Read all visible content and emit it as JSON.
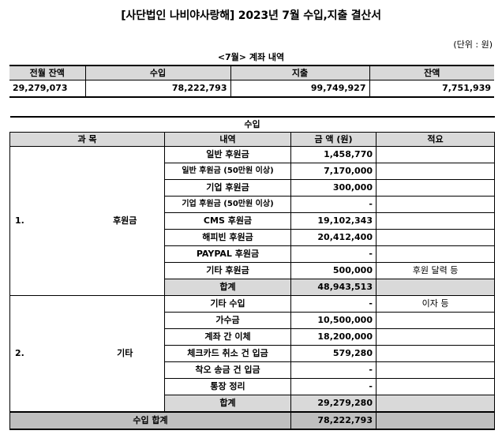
{
  "title": "[사단법인 나비야사랑해] 2023년 7월 수입,지출 결산서",
  "unit_label": "(단위 : 원)",
  "account_heading": "<7월> 계좌 내역",
  "summary": {
    "headers": [
      "전월 잔액",
      "수입",
      "지출",
      "잔액"
    ],
    "values": [
      "29,279,073",
      "78,222,793",
      "99,749,927",
      "7,751,939"
    ]
  },
  "income": {
    "section_title": "수입",
    "columns": [
      "과 목",
      "내역",
      "금 액 (원)",
      "적요"
    ],
    "groups": [
      {
        "number": "1.",
        "name": "후원금",
        "rows": [
          {
            "item": "일반 후원금",
            "amount": "1,458,770",
            "note": ""
          },
          {
            "item": "일반 후원금 (50만원 이상)",
            "amount": "7,170,000",
            "note": ""
          },
          {
            "item": "기업 후원금",
            "amount": "300,000",
            "note": ""
          },
          {
            "item": "기업 후원금 (50만원 이상)",
            "amount": "-",
            "note": ""
          },
          {
            "item": "CMS 후원금",
            "amount": "19,102,343",
            "note": ""
          },
          {
            "item": "해피빈 후원금",
            "amount": "20,412,400",
            "note": ""
          },
          {
            "item": "PAYPAL 후원금",
            "amount": "-",
            "note": ""
          },
          {
            "item": "기타 후원금",
            "amount": "500,000",
            "note": "후원 달력 등"
          }
        ],
        "subtotal_label": "합계",
        "subtotal": "48,943,513"
      },
      {
        "number": "2.",
        "name": "기타",
        "rows": [
          {
            "item": "기타 수입",
            "amount": "-",
            "note": "이자 등"
          },
          {
            "item": "가수금",
            "amount": "10,500,000",
            "note": ""
          },
          {
            "item": "계좌 간 이체",
            "amount": "18,200,000",
            "note": ""
          },
          {
            "item": "체크카드 취소 건 입금",
            "amount": "579,280",
            "note": ""
          },
          {
            "item": "착오 송금 건 입금",
            "amount": "-",
            "note": ""
          },
          {
            "item": "통장 정리",
            "amount": "-",
            "note": ""
          }
        ],
        "subtotal_label": "합계",
        "subtotal": "29,279,280"
      }
    ],
    "total_label": "수입 합계",
    "total": "78,222,793"
  }
}
